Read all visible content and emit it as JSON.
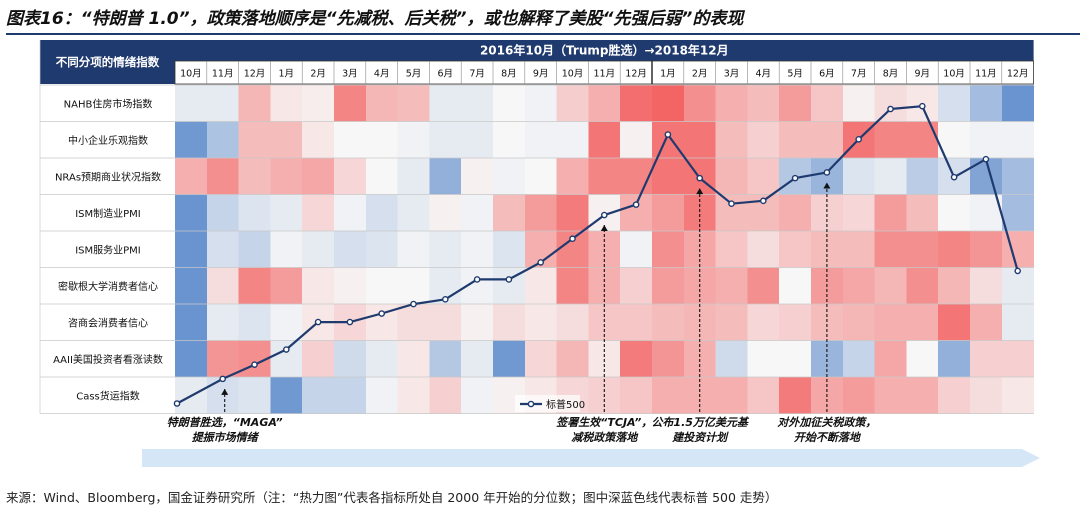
{
  "title": "图表16：“特朗普 1.0”，政策落地顺序是“先减税、后关税”，或也解释了美股“先强后弱”的表现",
  "source": "来源：Wind、Bloomberg，国金证券研究所（注：“热力图”代表各指标所处自 2000 年开始的分位数；图中深蓝色线代表标普 500 走势）",
  "header": {
    "corner_label": "不同分项的情绪指数",
    "period_label": "2016年10月（Trump胜选）→2018年12月"
  },
  "colors": {
    "header_bg": "#1f3a6e",
    "line": "#1f3a6e",
    "arrow_band": "#d5e6f6",
    "heat_low": "#4f81c7",
    "heat_mid": "#f7f7f7",
    "heat_high": "#f25454"
  },
  "chart_data": {
    "type": "heatmap",
    "x_tick_labels": [
      "10月",
      "11月",
      "12月",
      "1月",
      "2月",
      "3月",
      "4月",
      "5月",
      "6月",
      "7月",
      "8月",
      "9月",
      "10月",
      "11月",
      "12月",
      "1月",
      "2月",
      "3月",
      "4月",
      "5月",
      "6月",
      "7月",
      "8月",
      "9月",
      "10月",
      "11月",
      "12月"
    ],
    "rows": [
      "NAHB住房市场指数",
      "中小企业乐观指数",
      "NRAs预期商业状况指数",
      "ISM制造业PMI",
      "ISM服务业PMI",
      "密歇根大学消费者信心",
      "咨商会消费者信心",
      "AAII美国投资者看涨读数",
      "Cass货运指数"
    ],
    "color_scale": "blue (low percentile) to white to red (high percentile)",
    "values": [
      [
        0.45,
        0.45,
        0.7,
        0.55,
        0.53,
        0.85,
        0.7,
        0.68,
        0.45,
        0.45,
        0.5,
        0.48,
        0.63,
        0.72,
        0.92,
        0.95,
        0.82,
        0.72,
        0.68,
        0.78,
        0.65,
        0.52,
        0.58,
        0.55,
        0.4,
        0.25,
        0.08
      ],
      [
        0.1,
        0.28,
        0.68,
        0.68,
        0.55,
        0.5,
        0.5,
        0.48,
        0.45,
        0.45,
        0.5,
        0.48,
        0.48,
        0.9,
        0.52,
        0.9,
        0.9,
        0.68,
        0.62,
        0.68,
        0.68,
        0.9,
        0.85,
        0.85,
        0.5,
        0.48,
        0.48
      ],
      [
        0.72,
        0.82,
        0.68,
        0.72,
        0.75,
        0.6,
        0.5,
        0.45,
        0.2,
        0.52,
        0.48,
        0.5,
        0.72,
        0.85,
        0.85,
        0.9,
        0.9,
        0.7,
        0.65,
        0.3,
        0.22,
        0.42,
        0.45,
        0.32,
        0.4,
        0.15,
        0.25
      ],
      [
        0.08,
        0.35,
        0.42,
        0.45,
        0.6,
        0.48,
        0.4,
        0.45,
        0.52,
        0.48,
        0.68,
        0.78,
        0.88,
        0.52,
        0.72,
        0.78,
        0.88,
        0.68,
        0.68,
        0.72,
        0.62,
        0.6,
        0.78,
        0.68,
        0.5,
        0.48,
        0.25
      ],
      [
        0.08,
        0.4,
        0.35,
        0.48,
        0.45,
        0.4,
        0.42,
        0.48,
        0.45,
        0.48,
        0.42,
        0.72,
        0.85,
        0.72,
        0.48,
        0.82,
        0.75,
        0.65,
        0.58,
        0.65,
        0.68,
        0.68,
        0.82,
        0.82,
        0.85,
        0.8,
        0.72
      ],
      [
        0.08,
        0.58,
        0.85,
        0.78,
        0.55,
        0.52,
        0.5,
        0.5,
        0.45,
        0.48,
        0.45,
        0.55,
        0.85,
        0.72,
        0.62,
        0.78,
        0.75,
        0.72,
        0.82,
        0.5,
        0.78,
        0.75,
        0.7,
        0.82,
        0.7,
        0.58,
        0.45
      ],
      [
        0.08,
        0.45,
        0.42,
        0.48,
        0.55,
        0.6,
        0.55,
        0.58,
        0.58,
        0.52,
        0.58,
        0.55,
        0.58,
        0.65,
        0.65,
        0.68,
        0.7,
        0.68,
        0.6,
        0.62,
        0.68,
        0.7,
        0.72,
        0.72,
        0.9,
        0.72,
        0.45
      ],
      [
        0.08,
        0.8,
        0.82,
        0.45,
        0.62,
        0.38,
        0.45,
        0.55,
        0.3,
        0.45,
        0.1,
        0.6,
        0.7,
        0.55,
        0.88,
        0.8,
        0.72,
        0.38,
        0.5,
        0.5,
        0.22,
        0.35,
        0.75,
        0.5,
        0.2,
        0.62,
        0.62
      ],
      [
        0.45,
        0.4,
        0.42,
        0.1,
        0.35,
        0.35,
        0.48,
        0.55,
        0.62,
        0.48,
        0.52,
        0.55,
        0.6,
        0.62,
        0.65,
        0.72,
        0.72,
        0.72,
        0.65,
        0.88,
        0.75,
        0.78,
        0.72,
        0.72,
        0.62,
        0.58,
        0.55
      ]
    ],
    "line_series": {
      "name": "标普500",
      "values": [
        0.0,
        2.6,
        4.1,
        5.7,
        8.6,
        8.6,
        9.5,
        10.5,
        11.0,
        13.1,
        13.1,
        14.9,
        17.4,
        19.9,
        21.0,
        28.4,
        23.8,
        21.1,
        21.4,
        23.8,
        24.4,
        27.9,
        31.1,
        31.4,
        23.9,
        25.8,
        14.0
      ],
      "y_range": [
        0,
        33
      ]
    },
    "annotations": [
      {
        "label_lines": [
          "特朗普胜选，“MAGA”",
          "提振市场情绪"
        ],
        "month_index": 1
      },
      {
        "label_lines": [
          "签署生效“TCJA”，",
          "减税政策落地"
        ],
        "month_index": 13
      },
      {
        "label_lines": [
          "公布1.5万亿美元基",
          "建投资计划"
        ],
        "month_index": 16
      },
      {
        "label_lines": [
          "对外加征关税政策，",
          "开始不断落地"
        ],
        "month_index": 20
      }
    ]
  }
}
